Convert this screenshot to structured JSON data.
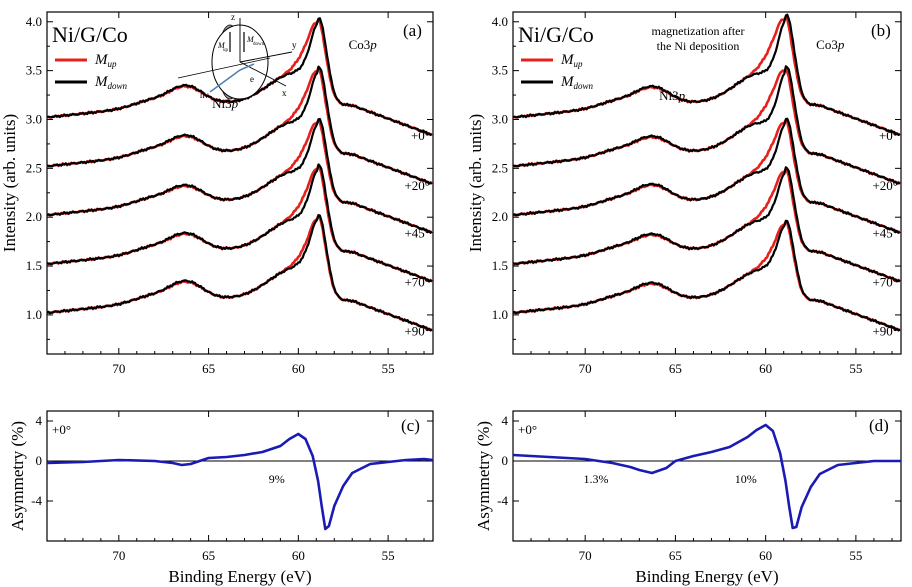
{
  "colors": {
    "up": "#e8201c",
    "down": "#000000",
    "asym": "#1a1ab4",
    "axis": "#000000"
  },
  "chart_data": [
    {
      "id": "a",
      "type": "line",
      "panel_label": "(a)",
      "sample_label": "Ni/G/Co",
      "note_lines": [],
      "ylabel": "Intensity (arb. units)",
      "xlim": [
        74,
        52.5
      ],
      "ylim": [
        0.6,
        4.1
      ],
      "xticks": [
        70,
        65,
        60,
        55
      ],
      "yticks": [
        "1.0",
        "1.5",
        "2.0",
        "2.5",
        "3.0",
        "3.5",
        "4.0"
      ],
      "peak_labels": [
        {
          "text": "Co3",
          "italic": "p",
          "x": 57.2,
          "y": 3.72
        },
        {
          "text": "Ni3",
          "italic": "p",
          "x": 64.8,
          "y": 3.12
        }
      ],
      "legend": [
        {
          "main": "M",
          "sub": "up",
          "color": "#e8201c"
        },
        {
          "main": "M",
          "sub": "down",
          "color": "#000000"
        }
      ],
      "inset": {
        "z": "z",
        "y": "y",
        "x": "x",
        "e": "e",
        "hv": "hν",
        "mup": "M",
        "mup_sub": "up",
        "mdown": "M",
        "mdown_sub": "down"
      },
      "series": [
        {
          "angle": "+0°",
          "base": 3.0,
          "ni": 0.17,
          "co": 0.85,
          "split": 0.07,
          "label_y": 2.79
        },
        {
          "angle": "+20°",
          "base": 2.5,
          "ni": 0.16,
          "co": 0.85,
          "split": 0.07,
          "label_y": 2.28
        },
        {
          "angle": "+45°",
          "base": 2.0,
          "ni": 0.15,
          "co": 0.82,
          "split": 0.07,
          "label_y": 1.79
        },
        {
          "angle": "+70°",
          "base": 1.5,
          "ni": 0.16,
          "co": 0.85,
          "split": 0.06,
          "label_y": 1.29
        },
        {
          "angle": "+90°",
          "base": 1.0,
          "ni": 0.17,
          "co": 0.84,
          "split": 0.04,
          "label_y": 0.79
        }
      ]
    },
    {
      "id": "b",
      "type": "line",
      "panel_label": "(b)",
      "sample_label": "Ni/G/Co",
      "note_lines": [
        "magnetization after",
        "the Ni deposition"
      ],
      "ylabel": "Intensity (arb. units)",
      "xlim": [
        74,
        52.5
      ],
      "ylim": [
        0.6,
        4.1
      ],
      "xticks": [
        70,
        65,
        60,
        55
      ],
      "yticks": [
        "1.0",
        "1.5",
        "2.0",
        "2.5",
        "3.0",
        "3.5",
        "4.0"
      ],
      "peak_labels": [
        {
          "text": "Co3",
          "italic": "p",
          "x": 57.2,
          "y": 3.72
        },
        {
          "text": "Ni3",
          "italic": "p",
          "x": 65.9,
          "y": 3.2
        }
      ],
      "legend": [
        {
          "main": "M",
          "sub": "up",
          "color": "#e8201c"
        },
        {
          "main": "M",
          "sub": "down",
          "color": "#000000"
        }
      ],
      "series": [
        {
          "angle": "+0°",
          "base": 3.0,
          "ni": 0.16,
          "co": 0.88,
          "split": 0.1,
          "label_y": 2.79
        },
        {
          "angle": "+20°",
          "base": 2.5,
          "ni": 0.15,
          "co": 0.85,
          "split": 0.1,
          "label_y": 2.28
        },
        {
          "angle": "+45°",
          "base": 2.0,
          "ni": 0.16,
          "co": 0.82,
          "split": 0.08,
          "label_y": 1.79
        },
        {
          "angle": "+70°",
          "base": 1.5,
          "ni": 0.15,
          "co": 0.82,
          "split": 0.07,
          "label_y": 1.29
        },
        {
          "angle": "+90°",
          "base": 1.0,
          "ni": 0.15,
          "co": 0.78,
          "split": 0.05,
          "label_y": 0.79
        }
      ]
    },
    {
      "id": "c",
      "type": "line",
      "panel_label": "(c)",
      "angle_label": "+0°",
      "xlabel": "Binding Energy (eV)",
      "ylabel": "Asymmetry (%)",
      "xlim": [
        74,
        52.5
      ],
      "ylim": [
        -8,
        5
      ],
      "xticks": [
        70,
        65,
        60,
        55
      ],
      "yticks": [
        4,
        0,
        -4
      ],
      "annotations": [
        {
          "text": "9%",
          "x": 61.2,
          "y": -2.2
        }
      ],
      "series": [
        {
          "name": "Asymmetry",
          "x": [
            74,
            72,
            70,
            68,
            67,
            66.5,
            66,
            65,
            64,
            63,
            62,
            61,
            60.5,
            60,
            59.6,
            59.2,
            58.9,
            58.7,
            58.5,
            58.3,
            58,
            57.5,
            57,
            56,
            55,
            54,
            53,
            52.5
          ],
          "y": [
            -0.2,
            -0.1,
            0.1,
            0,
            -0.2,
            -0.4,
            -0.3,
            0.3,
            0.4,
            0.6,
            0.9,
            1.5,
            2.2,
            2.7,
            2.2,
            0.5,
            -2,
            -4.5,
            -6.8,
            -6.5,
            -4.5,
            -2.5,
            -1.2,
            -0.3,
            -0.1,
            0.1,
            0.2,
            0.1
          ]
        }
      ]
    },
    {
      "id": "d",
      "type": "line",
      "panel_label": "(d)",
      "angle_label": "+0°",
      "xlabel": "Binding Energy (eV)",
      "ylabel": "Asymmetry (%)",
      "xlim": [
        74,
        52.5
      ],
      "ylim": [
        -8,
        5
      ],
      "xticks": [
        70,
        65,
        60,
        55
      ],
      "yticks": [
        4,
        0,
        -4
      ],
      "annotations": [
        {
          "text": "1.3%",
          "x": 69.4,
          "y": -2.2
        },
        {
          "text": "10%",
          "x": 61.1,
          "y": -2.2
        }
      ],
      "series": [
        {
          "name": "Asymmetry",
          "x": [
            74,
            72,
            70,
            68.5,
            67.5,
            67,
            66.3,
            65.5,
            65,
            64,
            63,
            62,
            61,
            60.5,
            60,
            59.6,
            59.2,
            58.9,
            58.7,
            58.5,
            58.3,
            58,
            57.5,
            57,
            56,
            55,
            54,
            53,
            52.5
          ],
          "y": [
            0.6,
            0.4,
            0.2,
            -0.2,
            -0.6,
            -0.9,
            -1.2,
            -0.7,
            0,
            0.5,
            0.9,
            1.4,
            2.4,
            3.1,
            3.6,
            3.0,
            0.8,
            -2,
            -4.5,
            -6.7,
            -6.6,
            -4.6,
            -2.6,
            -1.3,
            -0.4,
            -0.2,
            0,
            0,
            0
          ]
        }
      ]
    }
  ]
}
